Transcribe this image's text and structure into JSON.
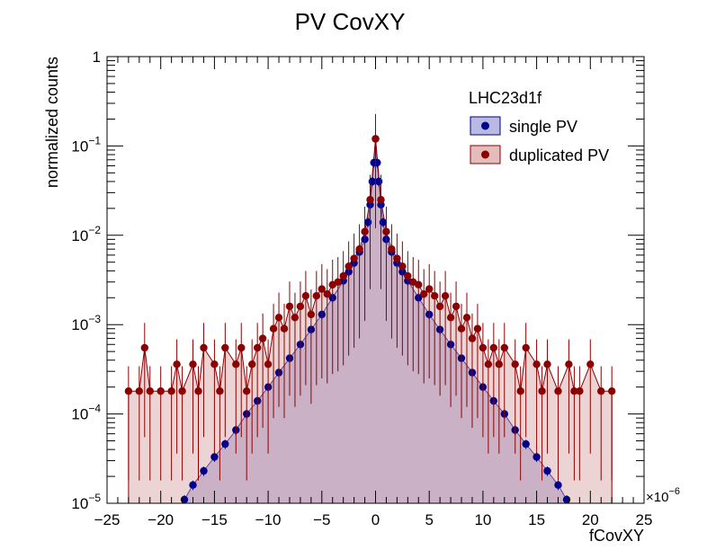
{
  "chart_data": {
    "type": "scatter",
    "title": "PV CovXY",
    "xlabel": "fCovXY",
    "ylabel": "normalized counts",
    "x_multiplier_label": "×10",
    "x_multiplier_exp": "−6",
    "xlim": [
      -25,
      25
    ],
    "ylim": [
      1e-05,
      1
    ],
    "yscale": "log",
    "grid": false,
    "x_ticks": [
      {
        "v": -25,
        "label": "−25"
      },
      {
        "v": -20,
        "label": "−20"
      },
      {
        "v": -15,
        "label": "−15"
      },
      {
        "v": -10,
        "label": "−10"
      },
      {
        "v": -5,
        "label": "−5"
      },
      {
        "v": 0,
        "label": "0"
      },
      {
        "v": 5,
        "label": "5"
      },
      {
        "v": 10,
        "label": "10"
      },
      {
        "v": 15,
        "label": "15"
      },
      {
        "v": 20,
        "label": "20"
      },
      {
        "v": 25,
        "label": "25"
      }
    ],
    "y_ticks": [
      {
        "v": 1,
        "base": "1",
        "exp": ""
      },
      {
        "v": 0.1,
        "base": "10",
        "exp": "−1"
      },
      {
        "v": 0.01,
        "base": "10",
        "exp": "−2"
      },
      {
        "v": 0.001,
        "base": "10",
        "exp": "−3"
      },
      {
        "v": 0.0001,
        "base": "10",
        "exp": "−4"
      },
      {
        "v": 1e-05,
        "base": "10",
        "exp": "−5"
      }
    ],
    "legend": {
      "header": "LHC23d1f",
      "position": "top-right",
      "entries": [
        "single PV",
        "duplicated PV"
      ]
    },
    "series": [
      {
        "name": "single PV",
        "color": "#00008b",
        "fill": "#8b8bcf",
        "x": [
          -17.8,
          -17.0,
          -16.0,
          -15.0,
          -14.0,
          -13.0,
          -12.0,
          -11.0,
          -10.0,
          -9.0,
          -8.0,
          -7.0,
          -6.0,
          -5.0,
          -4.0,
          -3.0,
          -2.5,
          -2.0,
          -1.5,
          -1.0,
          -0.7,
          -0.5,
          -0.3,
          -0.15,
          0.0,
          0.15,
          0.3,
          0.5,
          0.7,
          1.0,
          1.5,
          2.0,
          2.5,
          3.0,
          4.0,
          5.0,
          6.0,
          7.0,
          8.0,
          9.0,
          10.0,
          11.0,
          12.0,
          13.0,
          14.0,
          15.0,
          16.0,
          17.0,
          17.8
        ],
        "y": [
          1.1e-05,
          1.6e-05,
          2.3e-05,
          3.3e-05,
          4.6e-05,
          6.6e-05,
          0.0001,
          0.00014,
          0.0002,
          0.00029,
          0.00042,
          0.0006,
          0.00088,
          0.0013,
          0.002,
          0.0031,
          0.0039,
          0.0049,
          0.0065,
          0.009,
          0.014,
          0.022,
          0.04,
          0.065,
          0.12,
          0.065,
          0.04,
          0.022,
          0.014,
          0.009,
          0.0065,
          0.0049,
          0.0039,
          0.0031,
          0.002,
          0.0013,
          0.00088,
          0.0006,
          0.00042,
          0.00029,
          0.0002,
          0.00014,
          0.0001,
          6.6e-05,
          4.6e-05,
          3.3e-05,
          2.3e-05,
          1.6e-05,
          1.1e-05
        ]
      },
      {
        "name": "duplicated PV",
        "color": "#8b0000",
        "fill": "#d8a0a0",
        "x": [
          -23.0,
          -22.0,
          -21.5,
          -21.0,
          -20.0,
          -19.0,
          -18.5,
          -18.0,
          -17.0,
          -16.5,
          -16.0,
          -15.0,
          -14.5,
          -14.0,
          -13.0,
          -12.5,
          -12.0,
          -11.5,
          -11.0,
          -10.5,
          -10.0,
          -9.5,
          -9.0,
          -8.5,
          -8.0,
          -7.5,
          -7.0,
          -6.5,
          -6.0,
          -5.5,
          -5.0,
          -4.5,
          -4.0,
          -3.5,
          -3.0,
          -2.5,
          -2.0,
          -1.5,
          -1.0,
          -0.5,
          0.0,
          0.5,
          1.0,
          1.5,
          2.0,
          2.5,
          3.0,
          3.5,
          4.0,
          4.5,
          5.0,
          5.5,
          6.0,
          6.5,
          7.0,
          7.5,
          8.0,
          8.5,
          9.0,
          9.5,
          10.0,
          10.5,
          11.0,
          11.5,
          12.0,
          13.0,
          13.5,
          14.0,
          15.0,
          15.5,
          16.0,
          17.0,
          18.0,
          18.5,
          19.0,
          20.0,
          21.0,
          22.0
        ],
        "y": [
          0.00018,
          0.00018,
          0.00055,
          0.00018,
          0.00018,
          0.00018,
          0.00036,
          0.00018,
          0.00036,
          0.00018,
          0.00055,
          0.00036,
          0.00018,
          0.00055,
          0.00036,
          0.00055,
          0.00018,
          0.00036,
          0.00055,
          0.0007,
          0.00036,
          0.0009,
          0.0012,
          0.0009,
          0.0016,
          0.0012,
          0.0016,
          0.0021,
          0.0013,
          0.0021,
          0.0025,
          0.0022,
          0.0028,
          0.003,
          0.0035,
          0.0045,
          0.0055,
          0.007,
          0.011,
          0.025,
          0.12,
          0.025,
          0.011,
          0.007,
          0.0055,
          0.0045,
          0.0035,
          0.003,
          0.0028,
          0.0022,
          0.0025,
          0.0021,
          0.0016,
          0.0021,
          0.0012,
          0.0016,
          0.0009,
          0.0012,
          0.0007,
          0.0009,
          0.00055,
          0.00036,
          0.00055,
          0.00036,
          0.00055,
          0.00036,
          0.00018,
          0.00055,
          0.00036,
          0.00018,
          0.00036,
          0.00018,
          0.00036,
          0.00018,
          0.00018,
          0.00036,
          0.00018,
          0.00018
        ]
      }
    ]
  }
}
